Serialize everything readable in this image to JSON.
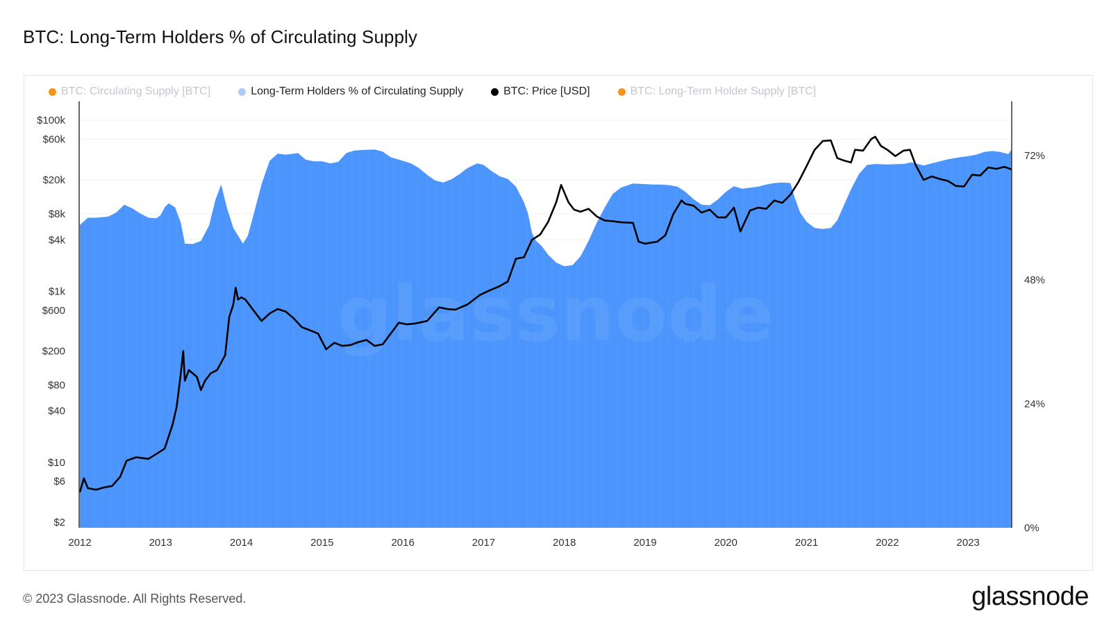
{
  "page": {
    "title": "BTC: Long-Term Holders % of Circulating Supply",
    "footer": "© 2023 Glassnode. All Rights Reserved.",
    "brand": "glassnode",
    "watermark": "glassnode"
  },
  "legend": [
    {
      "label": "BTC: Circulating Supply [BTC]",
      "color": "#f7931a",
      "state": "muted"
    },
    {
      "label": "Long-Term Holders % of Circulating Supply",
      "color": "#a9cdfa",
      "state": "active"
    },
    {
      "label": "BTC: Price [USD]",
      "color": "#000000",
      "state": "active"
    },
    {
      "label": "BTC: Long-Term Holder Supply [BTC]",
      "color": "#f7931a",
      "state": "muted"
    }
  ],
  "chart_data": {
    "type": "area",
    "title": "BTC: Long-Term Holders % of Circulating Supply",
    "x_ticks": [
      "2012",
      "2013",
      "2014",
      "2015",
      "2016",
      "2017",
      "2018",
      "2019",
      "2020",
      "2021",
      "2022",
      "2023"
    ],
    "left_axis": {
      "scale": "log",
      "ticks": [
        "$100k",
        "$60k",
        "$20k",
        "$8k",
        "$4k",
        "$1k",
        "$600",
        "$200",
        "$80",
        "$40",
        "$10",
        "$6",
        "$2"
      ],
      "tick_values": [
        100000,
        60000,
        20000,
        8000,
        4000,
        1000,
        600,
        200,
        80,
        40,
        10,
        6,
        2
      ]
    },
    "right_axis": {
      "scale": "linear",
      "ticks": [
        "72%",
        "48%",
        "24%",
        "0%"
      ],
      "tick_values": [
        72,
        48,
        24,
        0
      ],
      "range": [
        0,
        82.5
      ]
    },
    "series": [
      {
        "name": "Long-Term Holders % of Circulating Supply",
        "color": "#4c95fc",
        "points": [
          [
            2012.0,
            58.6
          ],
          [
            2012.1,
            60.0
          ],
          [
            2012.2,
            60.0
          ],
          [
            2012.35,
            60.2
          ],
          [
            2012.45,
            61.0
          ],
          [
            2012.55,
            62.5
          ],
          [
            2012.65,
            61.8
          ],
          [
            2012.75,
            60.8
          ],
          [
            2012.85,
            60.0
          ],
          [
            2012.95,
            59.9
          ],
          [
            2013.0,
            60.5
          ],
          [
            2013.05,
            62.0
          ],
          [
            2013.1,
            62.8
          ],
          [
            2013.18,
            62.0
          ],
          [
            2013.25,
            59.0
          ],
          [
            2013.3,
            55.0
          ],
          [
            2013.4,
            54.9
          ],
          [
            2013.5,
            55.5
          ],
          [
            2013.6,
            58.5
          ],
          [
            2013.68,
            63.5
          ],
          [
            2013.75,
            66.4
          ],
          [
            2013.82,
            62.0
          ],
          [
            2013.9,
            58.0
          ],
          [
            2013.96,
            56.5
          ],
          [
            2014.02,
            55.0
          ],
          [
            2014.08,
            56.5
          ],
          [
            2014.15,
            60.5
          ],
          [
            2014.25,
            66.5
          ],
          [
            2014.35,
            71.0
          ],
          [
            2014.45,
            72.4
          ],
          [
            2014.55,
            72.2
          ],
          [
            2014.7,
            72.5
          ],
          [
            2014.8,
            71.2
          ],
          [
            2014.9,
            70.9
          ],
          [
            2015.0,
            70.9
          ],
          [
            2015.1,
            70.5
          ],
          [
            2015.2,
            70.8
          ],
          [
            2015.3,
            72.5
          ],
          [
            2015.4,
            73.0
          ],
          [
            2015.5,
            73.1
          ],
          [
            2015.65,
            73.2
          ],
          [
            2015.75,
            72.8
          ],
          [
            2015.85,
            71.7
          ],
          [
            2016.0,
            71.0
          ],
          [
            2016.1,
            70.5
          ],
          [
            2016.2,
            69.6
          ],
          [
            2016.3,
            68.3
          ],
          [
            2016.4,
            67.2
          ],
          [
            2016.5,
            66.8
          ],
          [
            2016.6,
            67.4
          ],
          [
            2016.7,
            68.4
          ],
          [
            2016.8,
            69.6
          ],
          [
            2016.92,
            70.5
          ],
          [
            2017.0,
            70.2
          ],
          [
            2017.1,
            69.0
          ],
          [
            2017.2,
            68.0
          ],
          [
            2017.3,
            67.5
          ],
          [
            2017.4,
            66.0
          ],
          [
            2017.5,
            63.0
          ],
          [
            2017.55,
            60.8
          ],
          [
            2017.6,
            57.0
          ],
          [
            2017.65,
            55.5
          ],
          [
            2017.72,
            54.5
          ],
          [
            2017.8,
            52.8
          ],
          [
            2017.9,
            51.3
          ],
          [
            2018.0,
            50.6
          ],
          [
            2018.1,
            50.8
          ],
          [
            2018.2,
            52.5
          ],
          [
            2018.3,
            55.5
          ],
          [
            2018.4,
            59.0
          ],
          [
            2018.5,
            62.0
          ],
          [
            2018.6,
            64.6
          ],
          [
            2018.7,
            65.8
          ],
          [
            2018.85,
            66.6
          ],
          [
            2019.0,
            66.5
          ],
          [
            2019.1,
            66.4
          ],
          [
            2019.2,
            66.4
          ],
          [
            2019.3,
            66.3
          ],
          [
            2019.4,
            66.0
          ],
          [
            2019.5,
            65.0
          ],
          [
            2019.6,
            63.6
          ],
          [
            2019.7,
            62.5
          ],
          [
            2019.8,
            62.4
          ],
          [
            2019.9,
            63.5
          ],
          [
            2020.0,
            65.0
          ],
          [
            2020.1,
            66.1
          ],
          [
            2020.2,
            65.6
          ],
          [
            2020.3,
            65.8
          ],
          [
            2020.4,
            66.0
          ],
          [
            2020.5,
            66.4
          ],
          [
            2020.6,
            66.7
          ],
          [
            2020.7,
            66.8
          ],
          [
            2020.8,
            66.7
          ],
          [
            2020.85,
            64.0
          ],
          [
            2020.92,
            61.0
          ],
          [
            2021.0,
            59.2
          ],
          [
            2021.1,
            58.0
          ],
          [
            2021.2,
            57.8
          ],
          [
            2021.3,
            58.0
          ],
          [
            2021.38,
            59.5
          ],
          [
            2021.45,
            62.0
          ],
          [
            2021.55,
            65.5
          ],
          [
            2021.65,
            68.5
          ],
          [
            2021.75,
            70.2
          ],
          [
            2021.85,
            70.4
          ],
          [
            2022.0,
            70.3
          ],
          [
            2022.2,
            70.4
          ],
          [
            2022.3,
            70.7
          ],
          [
            2022.45,
            70.1
          ],
          [
            2022.6,
            70.7
          ],
          [
            2022.75,
            71.3
          ],
          [
            2022.9,
            71.7
          ],
          [
            2023.0,
            71.9
          ],
          [
            2023.1,
            72.2
          ],
          [
            2023.2,
            72.7
          ],
          [
            2023.3,
            72.9
          ],
          [
            2023.4,
            72.7
          ],
          [
            2023.5,
            72.3
          ],
          [
            2023.54,
            73.3
          ]
        ]
      },
      {
        "name": "BTC: Price [USD]",
        "color": "#000000",
        "points": [
          [
            2012.0,
            4.5
          ],
          [
            2012.05,
            6.5
          ],
          [
            2012.1,
            5.0
          ],
          [
            2012.2,
            4.8
          ],
          [
            2012.3,
            5.1
          ],
          [
            2012.4,
            5.3
          ],
          [
            2012.5,
            6.8
          ],
          [
            2012.58,
            10.5
          ],
          [
            2012.7,
            11.5
          ],
          [
            2012.85,
            11.0
          ],
          [
            2013.0,
            13.5
          ],
          [
            2013.05,
            14.5
          ],
          [
            2013.15,
            28
          ],
          [
            2013.2,
            45
          ],
          [
            2013.25,
            110
          ],
          [
            2013.28,
            200
          ],
          [
            2013.3,
            90
          ],
          [
            2013.35,
            120
          ],
          [
            2013.45,
            100
          ],
          [
            2013.5,
            70
          ],
          [
            2013.55,
            90
          ],
          [
            2013.62,
            110
          ],
          [
            2013.7,
            120
          ],
          [
            2013.8,
            180
          ],
          [
            2013.85,
            500
          ],
          [
            2013.9,
            700
          ],
          [
            2013.93,
            1100
          ],
          [
            2013.96,
            800
          ],
          [
            2014.0,
            850
          ],
          [
            2014.05,
            800
          ],
          [
            2014.15,
            600
          ],
          [
            2014.25,
            450
          ],
          [
            2014.35,
            550
          ],
          [
            2014.45,
            620
          ],
          [
            2014.55,
            580
          ],
          [
            2014.65,
            480
          ],
          [
            2014.75,
            380
          ],
          [
            2014.85,
            350
          ],
          [
            2014.95,
            320
          ],
          [
            2015.05,
            210
          ],
          [
            2015.15,
            250
          ],
          [
            2015.25,
            230
          ],
          [
            2015.35,
            235
          ],
          [
            2015.45,
            255
          ],
          [
            2015.55,
            270
          ],
          [
            2015.65,
            230
          ],
          [
            2015.75,
            240
          ],
          [
            2015.85,
            320
          ],
          [
            2015.95,
            430
          ],
          [
            2016.05,
            410
          ],
          [
            2016.15,
            420
          ],
          [
            2016.3,
            450
          ],
          [
            2016.45,
            650
          ],
          [
            2016.55,
            620
          ],
          [
            2016.65,
            610
          ],
          [
            2016.8,
            700
          ],
          [
            2016.95,
            900
          ],
          [
            2017.05,
            1000
          ],
          [
            2017.2,
            1150
          ],
          [
            2017.3,
            1300
          ],
          [
            2017.4,
            2400
          ],
          [
            2017.5,
            2500
          ],
          [
            2017.6,
            4000
          ],
          [
            2017.7,
            4600
          ],
          [
            2017.8,
            6500
          ],
          [
            2017.9,
            11000
          ],
          [
            2017.96,
            17500
          ],
          [
            2018.05,
            11000
          ],
          [
            2018.12,
            9000
          ],
          [
            2018.2,
            8500
          ],
          [
            2018.3,
            9200
          ],
          [
            2018.4,
            7500
          ],
          [
            2018.5,
            6700
          ],
          [
            2018.6,
            6600
          ],
          [
            2018.7,
            6400
          ],
          [
            2018.85,
            6300
          ],
          [
            2018.92,
            3800
          ],
          [
            2019.0,
            3600
          ],
          [
            2019.15,
            3800
          ],
          [
            2019.25,
            4500
          ],
          [
            2019.35,
            8000
          ],
          [
            2019.45,
            11500
          ],
          [
            2019.5,
            10500
          ],
          [
            2019.6,
            10000
          ],
          [
            2019.7,
            8300
          ],
          [
            2019.8,
            9000
          ],
          [
            2019.9,
            7300
          ],
          [
            2020.0,
            7300
          ],
          [
            2020.1,
            9500
          ],
          [
            2020.18,
            5000
          ],
          [
            2020.3,
            8800
          ],
          [
            2020.4,
            9500
          ],
          [
            2020.5,
            9200
          ],
          [
            2020.6,
            11500
          ],
          [
            2020.7,
            10800
          ],
          [
            2020.8,
            13500
          ],
          [
            2020.9,
            19000
          ],
          [
            2021.0,
            29000
          ],
          [
            2021.1,
            45000
          ],
          [
            2021.2,
            57000
          ],
          [
            2021.3,
            58000
          ],
          [
            2021.38,
            36000
          ],
          [
            2021.45,
            34000
          ],
          [
            2021.55,
            32000
          ],
          [
            2021.6,
            45000
          ],
          [
            2021.7,
            44000
          ],
          [
            2021.8,
            60000
          ],
          [
            2021.85,
            64000
          ],
          [
            2021.92,
            50000
          ],
          [
            2022.0,
            45000
          ],
          [
            2022.1,
            38000
          ],
          [
            2022.2,
            44000
          ],
          [
            2022.28,
            45000
          ],
          [
            2022.35,
            30000
          ],
          [
            2022.45,
            20000
          ],
          [
            2022.55,
            22000
          ],
          [
            2022.65,
            20500
          ],
          [
            2022.75,
            19500
          ],
          [
            2022.85,
            17000
          ],
          [
            2022.95,
            16800
          ],
          [
            2023.05,
            23000
          ],
          [
            2023.15,
            22500
          ],
          [
            2023.25,
            28000
          ],
          [
            2023.35,
            27000
          ],
          [
            2023.45,
            28500
          ],
          [
            2023.54,
            26500
          ]
        ]
      }
    ]
  }
}
